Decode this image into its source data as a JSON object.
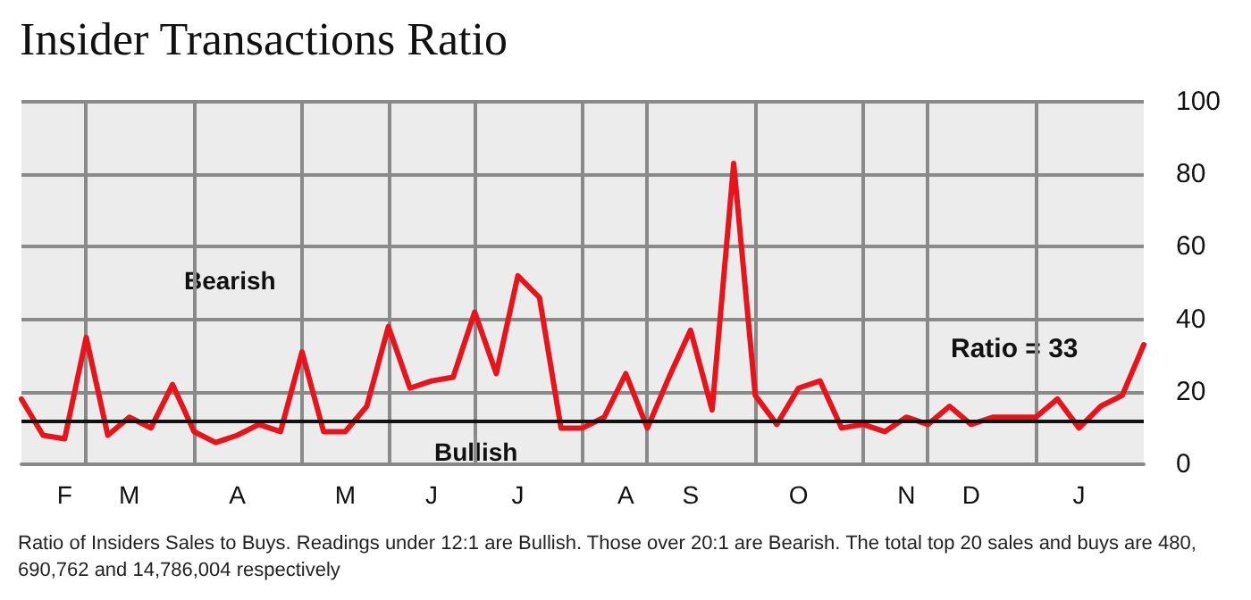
{
  "chart_data": {
    "type": "line",
    "title": "Insider Transactions Ratio",
    "categories": [
      null,
      null,
      "F",
      null,
      null,
      "M",
      null,
      null,
      null,
      null,
      "A",
      null,
      null,
      null,
      null,
      "M",
      null,
      null,
      null,
      "J",
      null,
      null,
      null,
      "J",
      null,
      null,
      null,
      null,
      "A",
      null,
      null,
      "S",
      null,
      null,
      null,
      null,
      "O",
      null,
      null,
      null,
      null,
      "N",
      null,
      null,
      "D",
      null,
      null,
      null,
      null,
      "J",
      null,
      null,
      null
    ],
    "series": [
      {
        "color": "#e8141c",
        "values": [
          18,
          8,
          7,
          35,
          8,
          13,
          10,
          22,
          9,
          6,
          8,
          11,
          9,
          31,
          9,
          9,
          16,
          38,
          21,
          23,
          24,
          42,
          25,
          52,
          46,
          10,
          10,
          13,
          25,
          10,
          24,
          37,
          15,
          83,
          19,
          11,
          21,
          23,
          10,
          11,
          9,
          13,
          11,
          16,
          11,
          13,
          13,
          13,
          18,
          10,
          16,
          19,
          33
        ]
      }
    ],
    "ylim": [
      0,
      100
    ],
    "yticks": [
      0,
      20,
      40,
      60,
      80,
      100
    ],
    "grid": true,
    "marker": "none",
    "line_style": "solid",
    "ref_lines": [
      {
        "axis": "y",
        "value": 12,
        "color": "#111111"
      }
    ],
    "annotations": [
      "Bearish",
      "Bullish",
      "Ratio = 33",
      "Ratio of Insiders Sales to Buys. Readings under 12:1 are Bullish. Those over 20:1 are Bearish. The total top 20 sales and buys are 480,690,762 and 14,786,004 respectively"
    ]
  }
}
